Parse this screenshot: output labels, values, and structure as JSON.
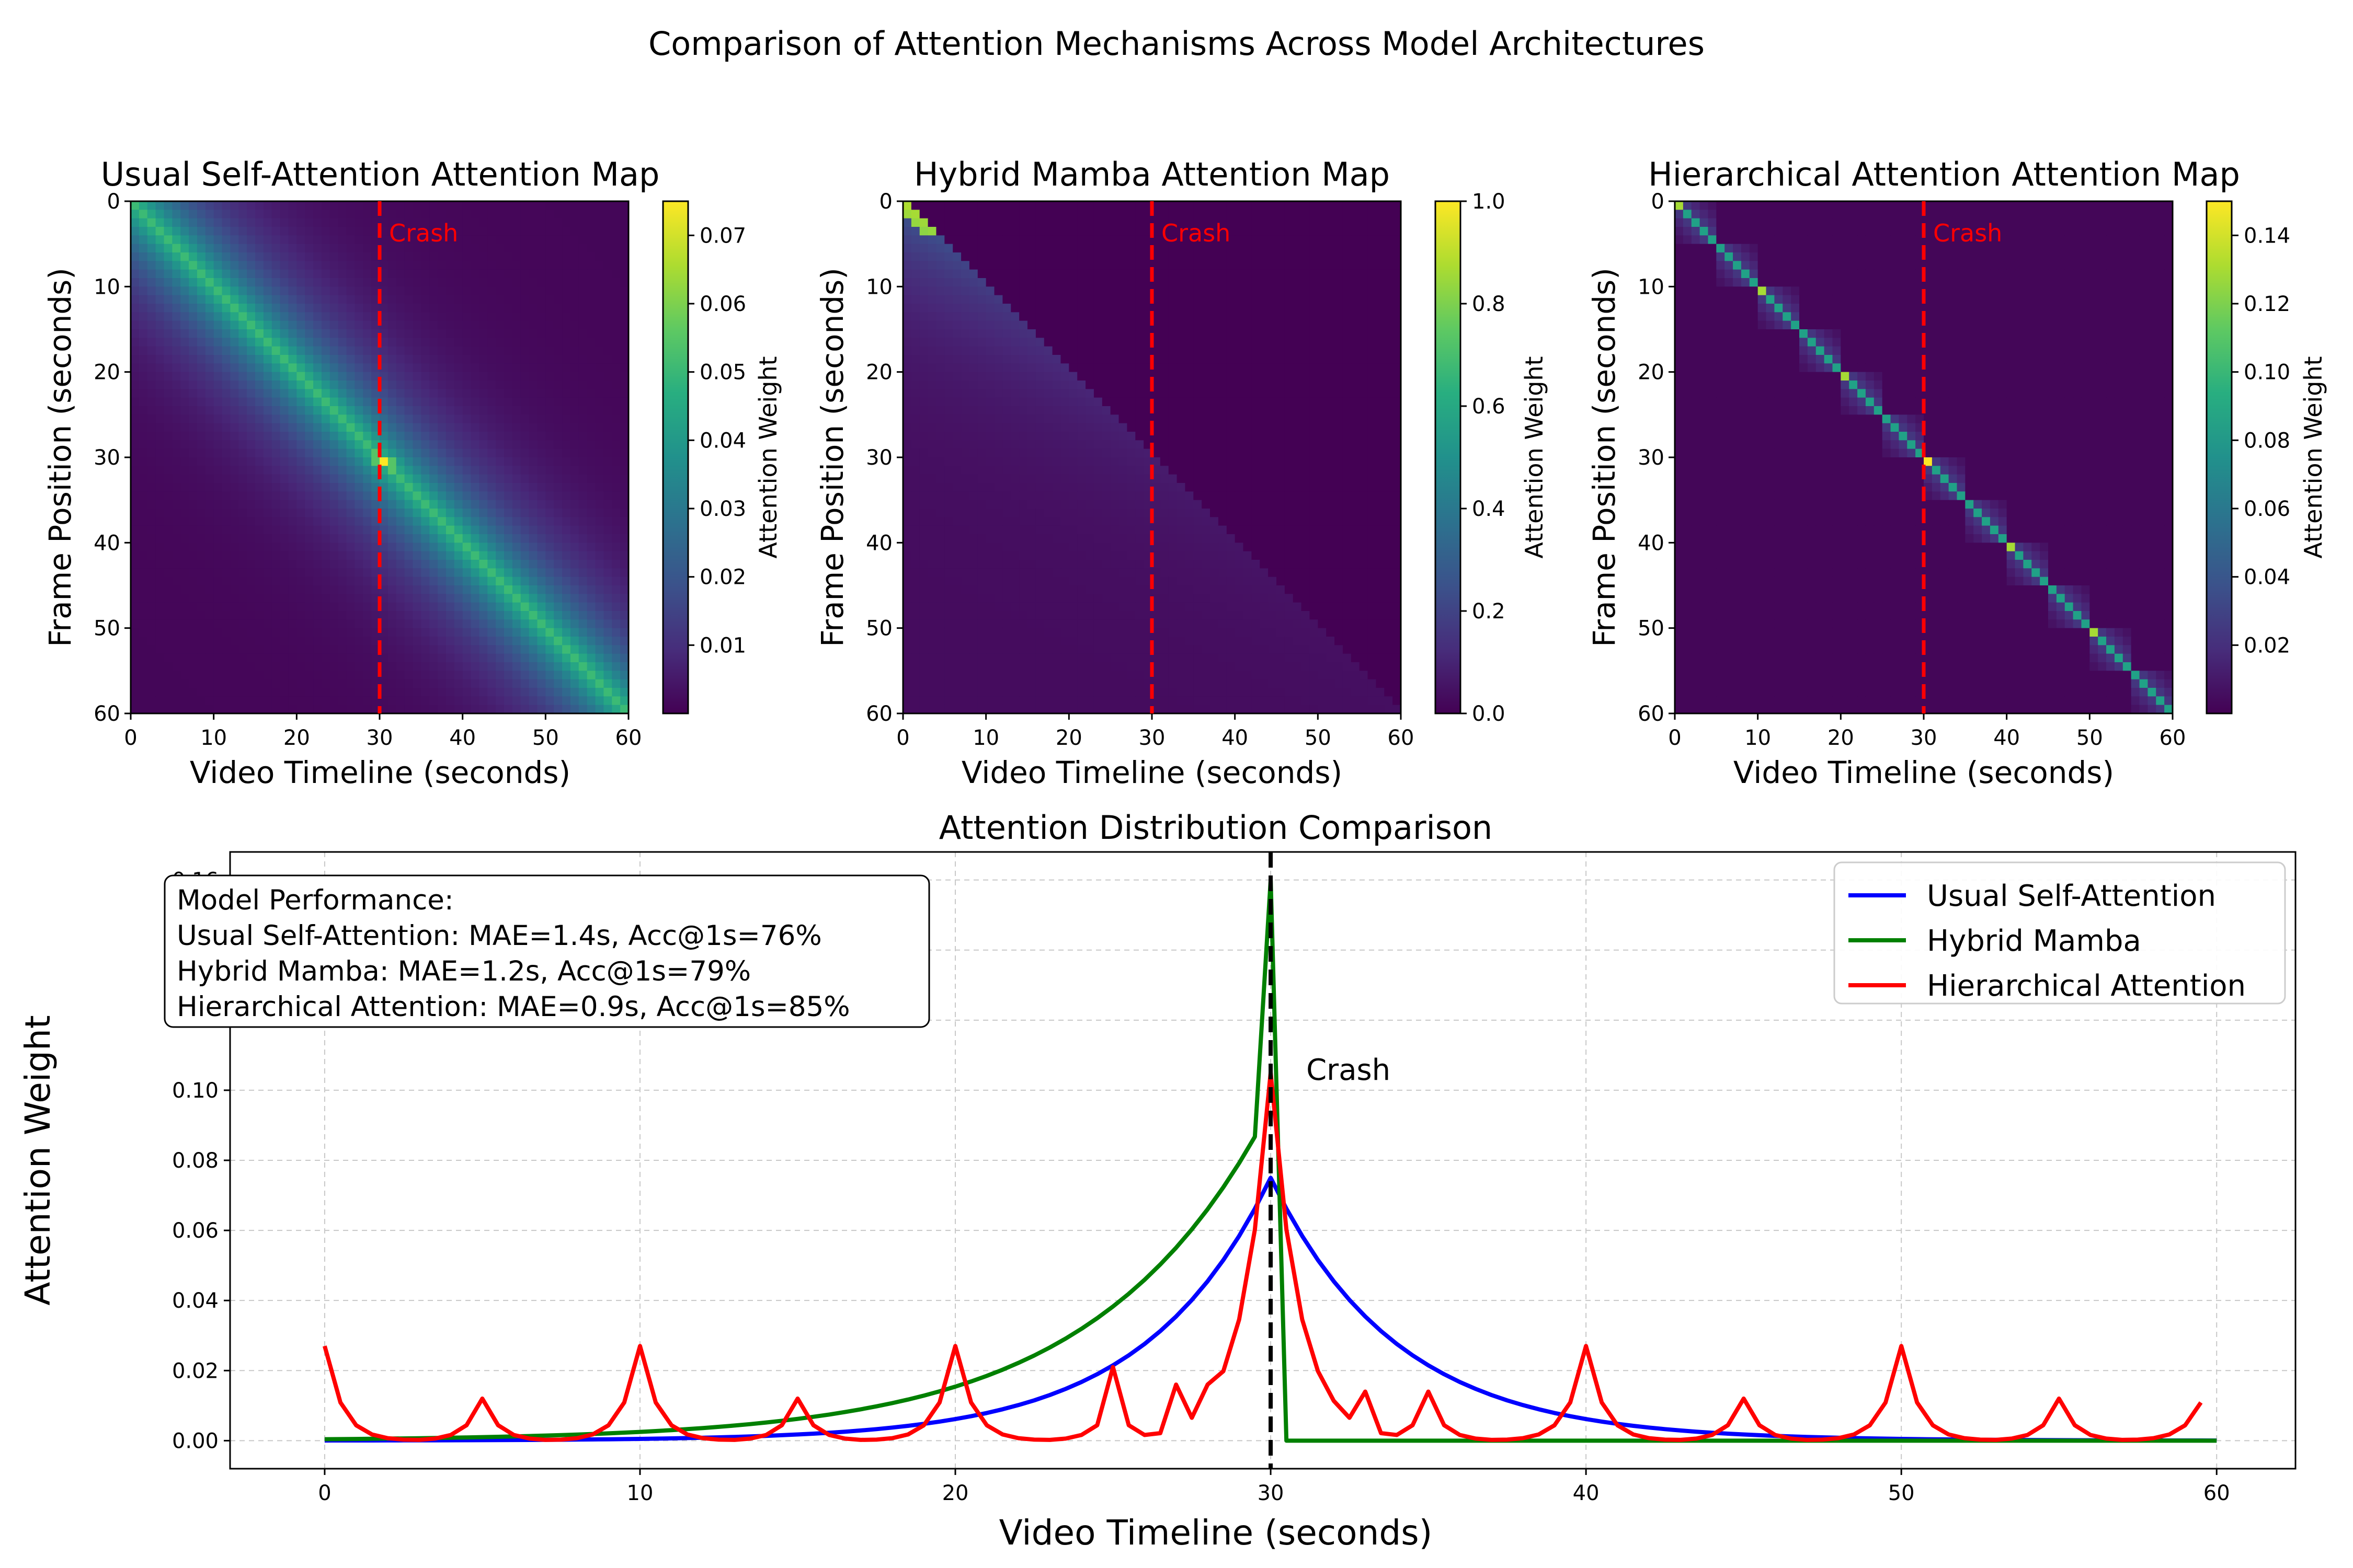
{
  "figure": {
    "title": "Comparison of Attention Mechanisms Across Model Architectures"
  },
  "chart_data": [
    {
      "type": "heatmap",
      "title": "Usual Self-Attention Attention Map",
      "xlabel": "Video Timeline (seconds)",
      "ylabel": "Frame Position (seconds)",
      "xlim": [
        0,
        60
      ],
      "ylim": [
        0,
        60
      ],
      "x_ticks": [
        0,
        10,
        20,
        30,
        40,
        50,
        60
      ],
      "y_ticks": [
        0,
        10,
        20,
        30,
        40,
        50,
        60
      ],
      "colorbar": {
        "label": "Attention Weight",
        "min": 0.0,
        "max": 0.075,
        "ticks": [
          0.01,
          0.02,
          0.03,
          0.04,
          0.05,
          0.06,
          0.07
        ],
        "tick_labels": [
          "0.01",
          "0.02",
          "0.03",
          "0.04",
          "0.05",
          "0.06",
          "0.07"
        ]
      },
      "pattern": "exponential decay from diagonal, peak 0.075 at frame 30",
      "crash_marker": {
        "x": 30,
        "label": "Crash"
      }
    },
    {
      "type": "heatmap",
      "title": "Hybrid Mamba Attention Map",
      "xlabel": "Video Timeline (seconds)",
      "ylabel": "Frame Position (seconds)",
      "xlim": [
        0,
        60
      ],
      "ylim": [
        0,
        60
      ],
      "x_ticks": [
        0,
        10,
        20,
        30,
        40,
        50,
        60
      ],
      "y_ticks": [
        0,
        10,
        20,
        30,
        40,
        50,
        60
      ],
      "colorbar": {
        "label": "Attention Weight",
        "min": 0.0,
        "max": 1.0,
        "ticks": [
          0.0,
          0.2,
          0.4,
          0.6,
          0.8,
          1.0
        ],
        "tick_labels": [
          "0.0",
          "0.2",
          "0.4",
          "0.6",
          "0.8",
          "1.0"
        ]
      },
      "pattern": "lower-triangular causal decay, bright diagonal near frame 0",
      "crash_marker": {
        "x": 30,
        "label": "Crash"
      }
    },
    {
      "type": "heatmap",
      "title": "Hierarchical Attention Attention Map",
      "xlabel": "Video Timeline (seconds)",
      "ylabel": "Frame Position (seconds)",
      "xlim": [
        0,
        60
      ],
      "ylim": [
        0,
        60
      ],
      "x_ticks": [
        0,
        10,
        20,
        30,
        40,
        50,
        60
      ],
      "y_ticks": [
        0,
        10,
        20,
        30,
        40,
        50,
        60
      ],
      "colorbar": {
        "label": "Attention Weight",
        "min": 0.0,
        "max": 0.15,
        "ticks": [
          0.02,
          0.04,
          0.06,
          0.08,
          0.1,
          0.12,
          0.14
        ],
        "tick_labels": [
          "0.02",
          "0.04",
          "0.06",
          "0.08",
          "0.10",
          "0.12",
          "0.14"
        ]
      },
      "pattern": "5-second block diagonal with peaks every 5s, strongest at 10s multiples and frame 30",
      "crash_marker": {
        "x": 30,
        "label": "Crash"
      }
    },
    {
      "type": "line",
      "title": "Attention Distribution Comparison",
      "xlabel": "Video Timeline (seconds)",
      "ylabel": "Attention Weight",
      "xlim": [
        -3,
        62.5
      ],
      "ylim": [
        -0.008,
        0.168
      ],
      "x_ticks": [
        0,
        10,
        20,
        30,
        40,
        50,
        60
      ],
      "y_ticks": [
        0.0,
        0.02,
        0.04,
        0.06,
        0.08,
        0.1,
        0.12,
        0.14,
        0.16
      ],
      "y_tick_labels": [
        "0.00",
        "0.02",
        "0.04",
        "0.06",
        "0.08",
        "0.10",
        "0.12",
        "0.14",
        "0.16"
      ],
      "x_step": 0.5,
      "series": [
        {
          "name": "Usual Self-Attention",
          "color": "#0000ff",
          "peak": 0.075,
          "peak_at": 30,
          "shape": "exponential decay, scale 4s"
        },
        {
          "name": "Hybrid Mamba",
          "color": "#008000",
          "peak": 0.16,
          "peak_at": 30,
          "pre_peak": 0.095,
          "shape": "exponential rise up to 30 then drops to 0 by 30.5"
        },
        {
          "name": "Hierarchical Attention",
          "color": "#ff0000",
          "peak": 0.105,
          "peak_at": 30,
          "shape": "periodic spikes: 0.027 at 10s multiples, ~0.012 at 5s offsets, extra bumps near 25-35"
        }
      ],
      "legend": {
        "position": "top-right",
        "entries": [
          "Usual Self-Attention",
          "Hybrid Mamba",
          "Hierarchical Attention"
        ]
      },
      "annotation": {
        "heading": "Model Performance:",
        "lines": [
          "Usual Self-Attention: MAE=1.4s, Acc@1s=76%",
          "Hybrid Mamba: MAE=1.2s, Acc@1s=79%",
          "Hierarchical Attention: MAE=0.9s, Acc@1s=85%"
        ]
      },
      "crash_marker": {
        "x": 30,
        "label": "Crash",
        "label_y": 0.103
      }
    }
  ]
}
